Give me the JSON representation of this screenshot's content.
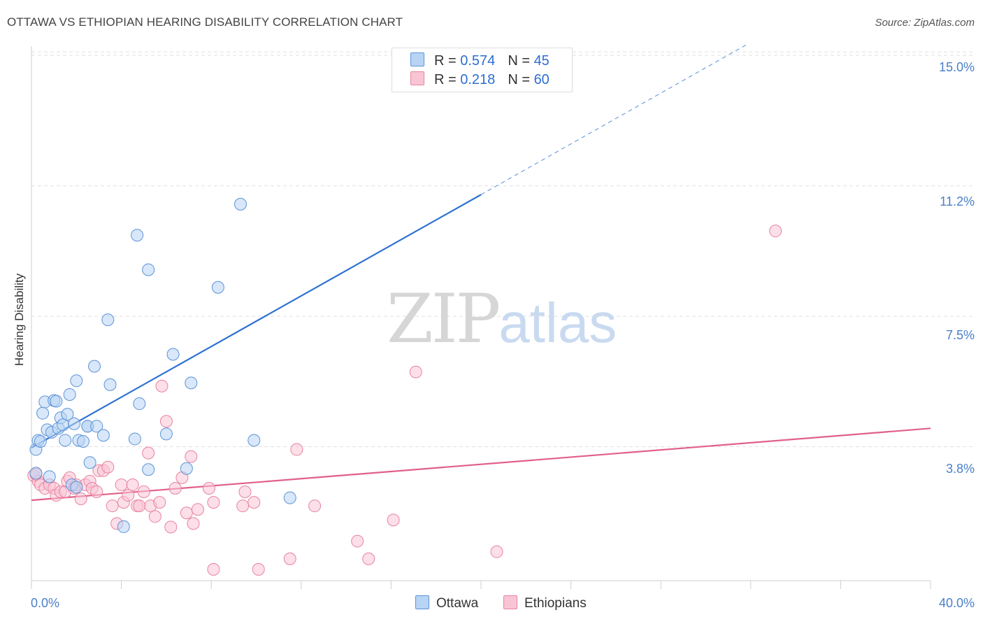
{
  "header": {
    "title": "OTTAWA VS ETHIOPIAN HEARING DISABILITY CORRELATION CHART",
    "source": "Source: ZipAtlas.com"
  },
  "watermark": {
    "zip": "ZIP",
    "atlas": "atlas"
  },
  "legend": {
    "ottawa": {
      "r_label": "R = ",
      "r_value": "0.574",
      "n_label": "N = ",
      "n_value": "45"
    },
    "ethiopians": {
      "r_label": "R = ",
      "r_value": "0.218",
      "n_label": "N = ",
      "n_value": "60"
    }
  },
  "bottom_legend": {
    "ottawa": "Ottawa",
    "ethiopians": "Ethiopians"
  },
  "colors": {
    "ottawa_fill": "#b8d4f4",
    "ottawa_stroke": "#5d93d6",
    "ottawa_line": "#2e72d2",
    "ethiopians_fill": "#f9c5d5",
    "ethiopians_stroke": "#e8839f",
    "ethiopians_line": "#e0608a",
    "tick_text": "#4a80c8",
    "grid": "#e0e0e0"
  },
  "chart_data": {
    "type": "scatter",
    "title": "OTTAWA VS ETHIOPIAN HEARING DISABILITY CORRELATION CHART",
    "xlabel": "",
    "ylabel": "Hearing Disability",
    "xlim": [
      0,
      40
    ],
    "ylim": [
      0,
      15.5
    ],
    "x_tick_labels": [
      "0.0%",
      "40.0%"
    ],
    "y_ticks": [
      3.8,
      7.5,
      11.2,
      15.0
    ],
    "y_tick_labels": [
      "3.8%",
      "7.5%",
      "11.2%",
      "15.0%"
    ],
    "grid": true,
    "legend_position": "top-center",
    "series": [
      {
        "name": "Ottawa",
        "r": 0.574,
        "n": 45,
        "trend": {
          "x0": 0.0,
          "y0": 3.77,
          "x1": 20.0,
          "y1": 10.95,
          "dashed_to_x": 31.8,
          "dashed_to_y": 15.2
        },
        "points": [
          [
            0.2,
            3.72
          ],
          [
            0.3,
            3.98
          ],
          [
            0.4,
            3.95
          ],
          [
            0.5,
            4.75
          ],
          [
            0.6,
            5.07
          ],
          [
            0.7,
            4.28
          ],
          [
            0.9,
            4.21
          ],
          [
            1.0,
            5.11
          ],
          [
            1.1,
            5.09
          ],
          [
            1.2,
            4.32
          ],
          [
            1.3,
            4.62
          ],
          [
            1.4,
            4.42
          ],
          [
            1.5,
            3.98
          ],
          [
            1.6,
            4.72
          ],
          [
            1.7,
            5.28
          ],
          [
            1.8,
            2.72
          ],
          [
            1.9,
            4.45
          ],
          [
            2.0,
            2.65
          ],
          [
            2.0,
            5.67
          ],
          [
            2.1,
            3.98
          ],
          [
            2.3,
            3.95
          ],
          [
            2.5,
            4.38
          ],
          [
            2.5,
            4.38
          ],
          [
            2.6,
            3.35
          ],
          [
            2.8,
            6.08
          ],
          [
            2.9,
            4.38
          ],
          [
            3.2,
            4.12
          ],
          [
            3.4,
            7.4
          ],
          [
            3.5,
            5.56
          ],
          [
            4.1,
            1.53
          ],
          [
            4.6,
            4.02
          ],
          [
            4.7,
            9.8
          ],
          [
            4.8,
            5.02
          ],
          [
            5.2,
            8.82
          ],
          [
            5.2,
            3.15
          ],
          [
            6.0,
            4.16
          ],
          [
            6.3,
            6.42
          ],
          [
            6.9,
            3.18
          ],
          [
            7.1,
            5.61
          ],
          [
            8.3,
            8.32
          ],
          [
            9.3,
            10.68
          ],
          [
            9.9,
            3.98
          ],
          [
            11.5,
            2.35
          ],
          [
            0.2,
            3.05
          ],
          [
            0.8,
            2.95
          ]
        ]
      },
      {
        "name": "Ethiopians",
        "r": 0.218,
        "n": 60,
        "trend": {
          "x0": 0.0,
          "y0": 2.28,
          "x1": 40.0,
          "y1": 4.32
        },
        "points": [
          [
            0.1,
            2.98
          ],
          [
            0.3,
            2.82
          ],
          [
            0.4,
            2.72
          ],
          [
            0.6,
            2.62
          ],
          [
            0.8,
            2.72
          ],
          [
            1.0,
            2.62
          ],
          [
            1.1,
            2.42
          ],
          [
            1.3,
            2.52
          ],
          [
            1.5,
            2.52
          ],
          [
            1.6,
            2.82
          ],
          [
            1.7,
            2.92
          ],
          [
            1.9,
            2.62
          ],
          [
            2.0,
            2.72
          ],
          [
            2.2,
            2.32
          ],
          [
            2.4,
            2.72
          ],
          [
            2.6,
            2.82
          ],
          [
            2.7,
            2.62
          ],
          [
            2.9,
            2.52
          ],
          [
            3.0,
            3.12
          ],
          [
            3.2,
            3.12
          ],
          [
            3.4,
            3.22
          ],
          [
            3.6,
            2.12
          ],
          [
            3.8,
            1.62
          ],
          [
            4.0,
            2.72
          ],
          [
            4.1,
            2.22
          ],
          [
            4.3,
            2.42
          ],
          [
            4.5,
            2.72
          ],
          [
            4.7,
            2.12
          ],
          [
            4.8,
            2.12
          ],
          [
            5.0,
            2.52
          ],
          [
            5.2,
            3.62
          ],
          [
            5.3,
            2.12
          ],
          [
            5.5,
            1.82
          ],
          [
            5.7,
            2.22
          ],
          [
            5.8,
            5.52
          ],
          [
            6.0,
            4.52
          ],
          [
            6.2,
            1.52
          ],
          [
            6.4,
            2.62
          ],
          [
            6.7,
            2.92
          ],
          [
            6.9,
            1.92
          ],
          [
            7.1,
            3.52
          ],
          [
            7.2,
            1.62
          ],
          [
            7.4,
            2.02
          ],
          [
            7.9,
            2.62
          ],
          [
            8.1,
            2.22
          ],
          [
            8.1,
            0.32
          ],
          [
            9.4,
            2.12
          ],
          [
            9.5,
            2.52
          ],
          [
            9.9,
            2.22
          ],
          [
            10.1,
            0.32
          ],
          [
            11.5,
            0.62
          ],
          [
            11.8,
            3.72
          ],
          [
            12.6,
            2.12
          ],
          [
            14.5,
            1.12
          ],
          [
            15.0,
            0.62
          ],
          [
            16.1,
            1.72
          ],
          [
            17.1,
            5.92
          ],
          [
            20.7,
            0.82
          ],
          [
            33.1,
            9.92
          ],
          [
            0.2,
            3.02
          ]
        ]
      }
    ]
  }
}
